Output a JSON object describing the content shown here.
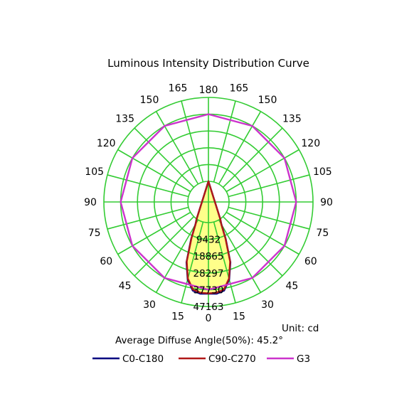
{
  "chart_data": {
    "type": "polar",
    "title": "Luminous Intensity Distribution Curve",
    "unit_label": "Unit: cd",
    "average_angle_label": "Average Diffuse Angle(50%): 45.2°",
    "angle_ticks": {
      "left": [
        "180",
        "165",
        "150",
        "135",
        "120",
        "105",
        "90",
        "75",
        "60",
        "45",
        "30",
        "15",
        "0"
      ],
      "right": [
        "165",
        "150",
        "135",
        "120",
        "105",
        "90",
        "75",
        "60",
        "45",
        "30",
        "15"
      ]
    },
    "angle_values": [
      0,
      15,
      30,
      45,
      60,
      75,
      90,
      105,
      120,
      135,
      150,
      165,
      180
    ],
    "radial_ticks": [
      "9432",
      "18865",
      "28297",
      "37730",
      "47163"
    ],
    "radial_max": 47163,
    "grid": true,
    "legend_position": "bottom",
    "colors": {
      "grid": "#33cc33",
      "fill": "#ffff88"
    },
    "series": [
      {
        "name": "C0-C180",
        "color": "#000080",
        "angles": [
          0,
          5,
          10,
          15,
          20,
          25,
          30,
          35,
          180
        ],
        "values": [
          40000,
          40200,
          39000,
          33500,
          24500,
          11500,
          3000,
          0,
          0
        ]
      },
      {
        "name": "C90-C270",
        "color": "#b01818",
        "angles": [
          0,
          5,
          10,
          15,
          20,
          25,
          30,
          35,
          180
        ],
        "values": [
          39800,
          39600,
          38400,
          33000,
          24000,
          11000,
          2800,
          0,
          0
        ]
      },
      {
        "name": "G3",
        "color": "#cc33cc",
        "angles": [
          0,
          30,
          60,
          90,
          120,
          150,
          180
        ],
        "values": [
          37730,
          37730,
          37730,
          37730,
          37730,
          37730,
          37730
        ]
      }
    ]
  }
}
